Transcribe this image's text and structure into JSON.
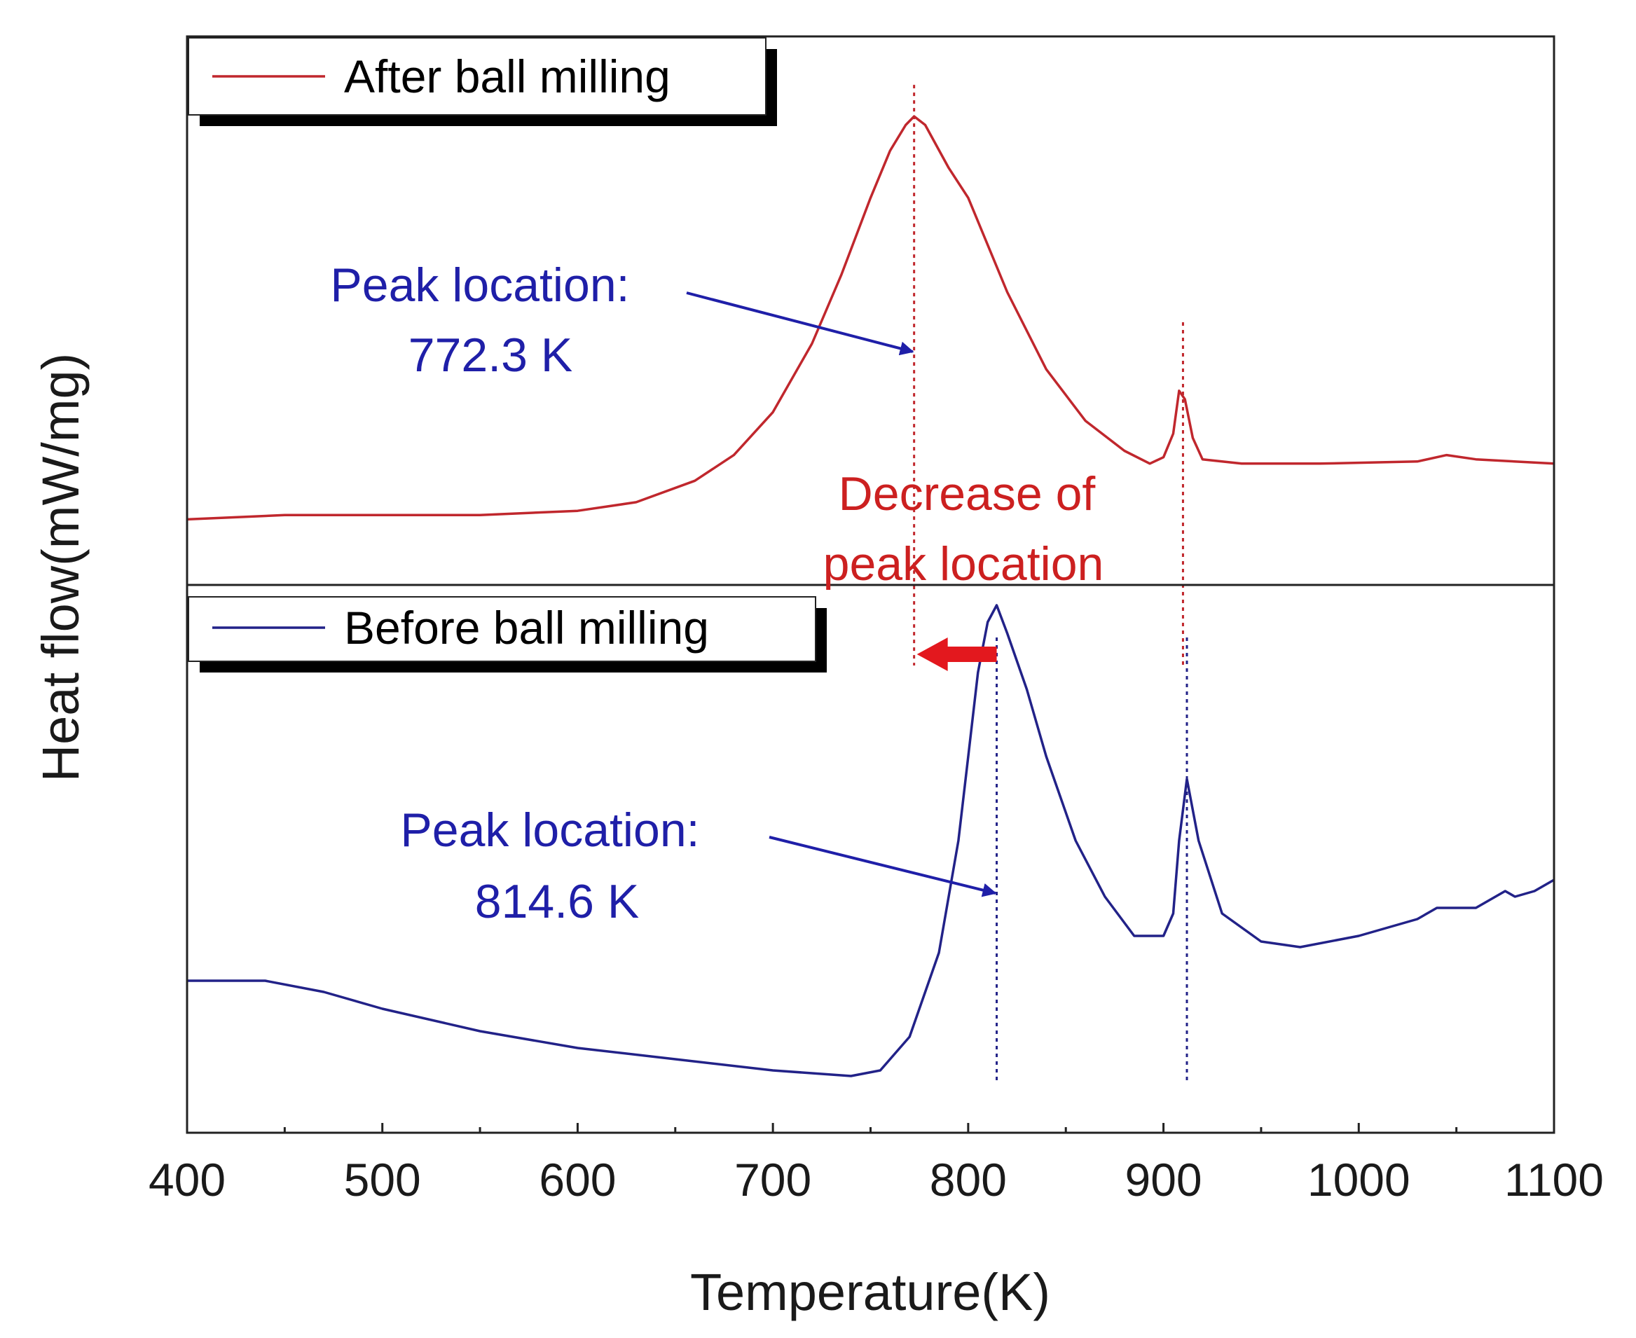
{
  "chart_data": {
    "type": "line",
    "title": "",
    "xlabel": "Temperature(K)",
    "ylabel": "Heat flow(mW/mg)",
    "xlim": [
      400,
      1100
    ],
    "xticks": [
      400,
      500,
      600,
      700,
      800,
      900,
      1000,
      1100
    ],
    "grid": false,
    "panels": [
      {
        "name": "upper",
        "legend": "After ball milling",
        "legend_position": "top-left",
        "color": "#c0272d",
        "ylim": [
          0,
          100
        ],
        "x": [
          400,
          450,
          500,
          550,
          600,
          630,
          660,
          680,
          700,
          720,
          735,
          750,
          760,
          768,
          772.3,
          778,
          790,
          800,
          820,
          840,
          860,
          880,
          893,
          900,
          905,
          908,
          911,
          915,
          920,
          940,
          980,
          1030,
          1045,
          1060,
          1100
        ],
        "values": [
          5,
          6,
          6,
          6,
          7,
          9,
          14,
          20,
          30,
          46,
          62,
          80,
          91,
          97,
          99,
          97,
          87,
          80,
          58,
          40,
          28,
          21,
          18,
          19.5,
          25,
          35,
          33,
          24,
          19,
          18,
          18,
          18.5,
          20,
          19,
          18
        ],
        "peak_x": 772.3,
        "secondary_peak_x": 910,
        "annotation": [
          "Peak location:",
          "772.3 K"
        ]
      },
      {
        "name": "lower",
        "legend": "Before ball milling",
        "legend_position": "top-left",
        "color": "#222288",
        "ylim": [
          0,
          100
        ],
        "x": [
          400,
          440,
          470,
          500,
          550,
          600,
          650,
          700,
          740,
          755,
          770,
          785,
          795,
          800,
          805,
          810,
          814.6,
          820,
          830,
          840,
          855,
          870,
          885,
          900,
          905,
          908,
          912,
          918,
          930,
          950,
          970,
          1000,
          1030,
          1040,
          1060,
          1075,
          1080,
          1090,
          1100
        ],
        "values": [
          20,
          20,
          18,
          15,
          11,
          8,
          6,
          4,
          3,
          4,
          10,
          25,
          45,
          60,
          75,
          84,
          87,
          82,
          72,
          60,
          45,
          35,
          28,
          28,
          32,
          45,
          56,
          45,
          32,
          27,
          26,
          28,
          31,
          33,
          33,
          36,
          35,
          36,
          38
        ],
        "peak_x": 814.6,
        "secondary_peak_x": 912,
        "annotation": [
          "Peak location:",
          "814.6 K"
        ]
      }
    ],
    "shift_annotation": {
      "lines": [
        "Decrease of",
        "peak location"
      ],
      "from_x": 814.6,
      "to_x": 772.3,
      "color": "#cc2020"
    },
    "annotation_color": "#1f1fa8",
    "arrow_color": "#e3181e"
  }
}
